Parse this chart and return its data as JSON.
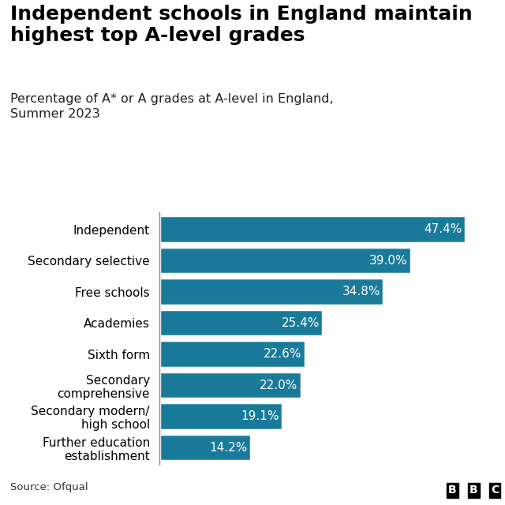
{
  "title": "Independent schools in England maintain\nhighest top A-level grades",
  "subtitle": "Percentage of A* or A grades at A-level in England,\nSummer 2023",
  "source": "Source: Ofqual",
  "categories": [
    "Further education\nestablishment",
    "Secondary modern/\nhigh school",
    "Secondary\ncomprehensive",
    "Sixth form",
    "Academies",
    "Free schools",
    "Secondary selective",
    "Independent"
  ],
  "values": [
    14.2,
    19.1,
    22.0,
    22.6,
    25.4,
    34.8,
    39.0,
    47.4
  ],
  "bar_color": "#1a7a9a",
  "label_color": "#ffffff",
  "background_color": "#ffffff",
  "text_color": "#000000",
  "title_fontsize": 18,
  "subtitle_fontsize": 11.5,
  "label_fontsize": 11,
  "category_fontsize": 11,
  "source_fontsize": 9.5,
  "xlim": [
    0,
    52
  ],
  "bbc_logo_color": "#000000"
}
